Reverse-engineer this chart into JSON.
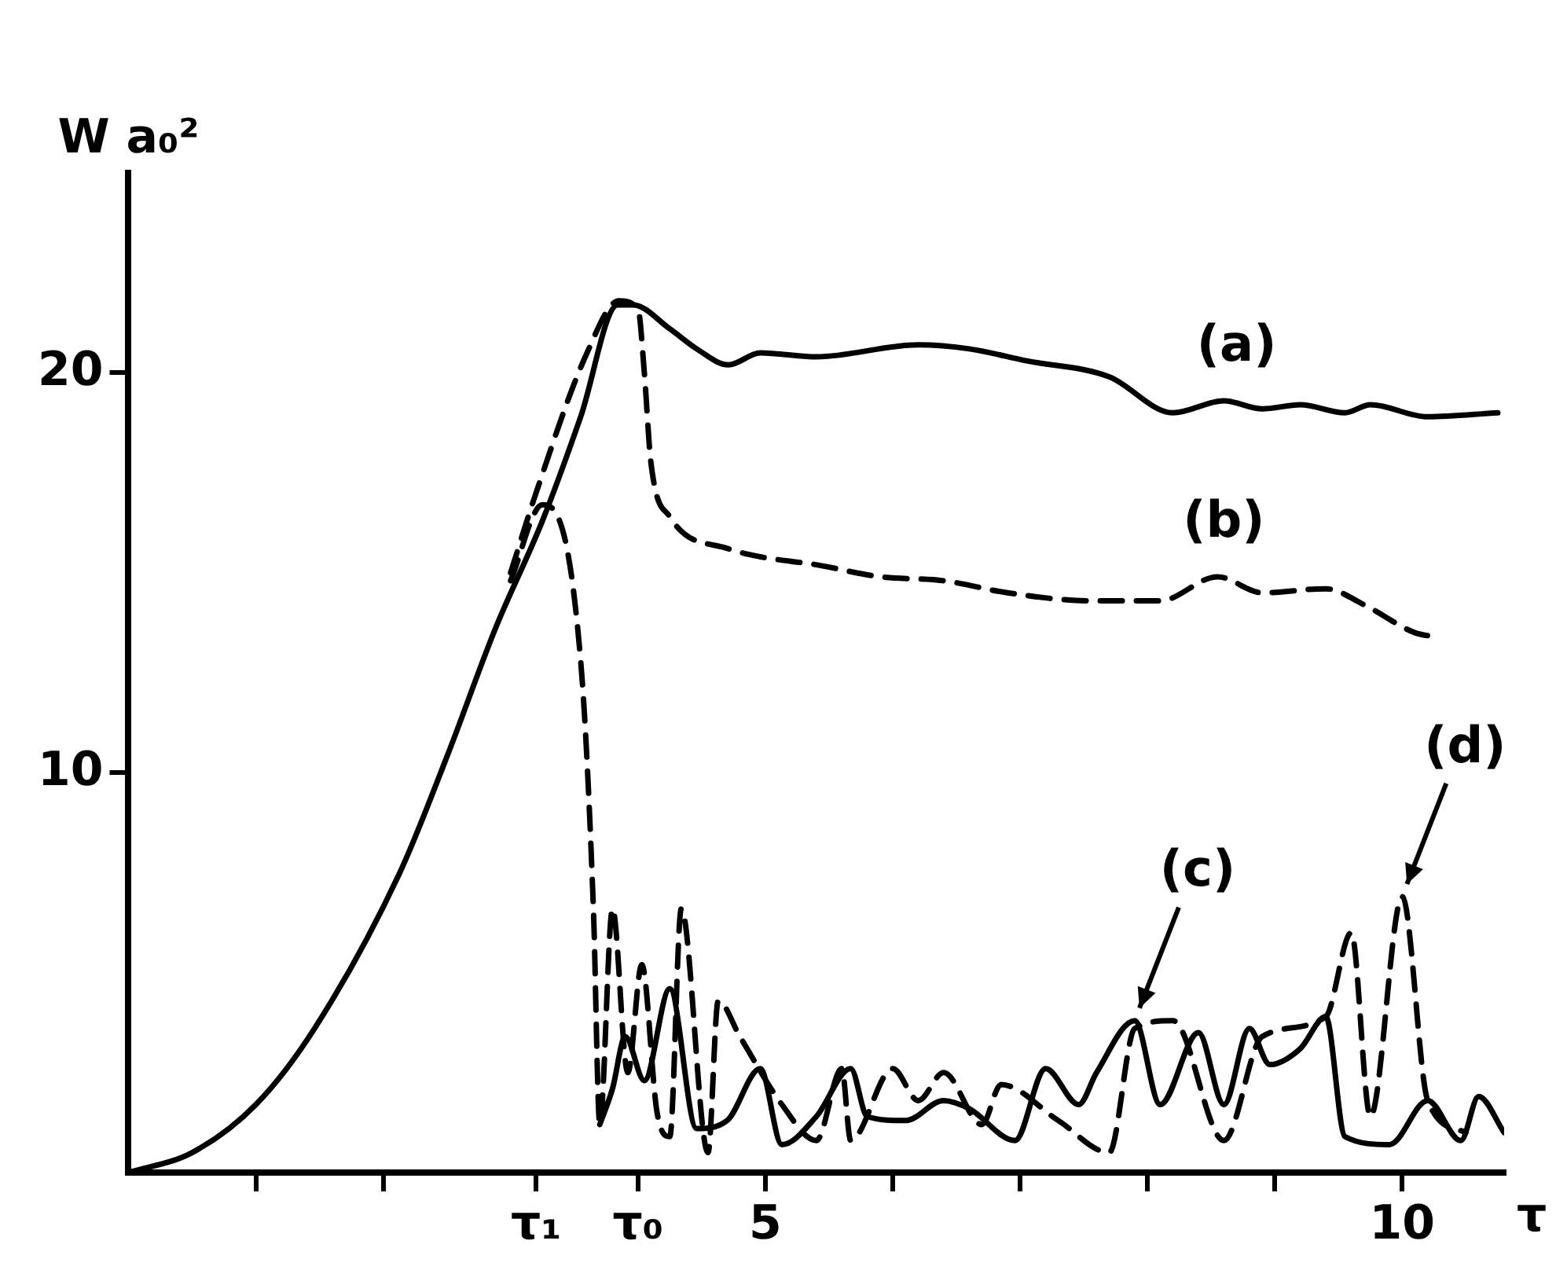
{
  "chart_data": {
    "type": "line",
    "xlabel": "τ",
    "ylabel": "W a₀²",
    "xlim": [
      0,
      10.8
    ],
    "ylim": [
      0,
      25
    ],
    "xticks": [
      {
        "value": 1,
        "label": null
      },
      {
        "value": 2,
        "label": null
      },
      {
        "value": 3.2,
        "label": "τ₁"
      },
      {
        "value": 4,
        "label": "τ₀"
      },
      5,
      {
        "value": 6,
        "label": null
      },
      {
        "value": 7,
        "label": null
      },
      {
        "value": 8,
        "label": null
      },
      {
        "value": 9,
        "label": null
      },
      10
    ],
    "yticks": [
      10,
      20
    ],
    "grid": false,
    "legend": false,
    "marker": "none",
    "series": [
      {
        "color": "#000000",
        "line_style": "solid",
        "x": [
          0,
          0.5,
          1.0,
          1.46,
          2.13,
          2.5,
          2.88,
          3.25,
          3.55,
          3.84,
          3.96,
          4.25,
          4.46,
          4.71,
          4.96,
          5.4,
          6.2,
          6.6,
          7.05,
          7.7,
          8.2,
          8.6,
          8.9,
          9.2,
          9.55,
          9.75,
          10.2,
          10.75
        ],
        "values": [
          0,
          0.5,
          1.7,
          3.6,
          7.5,
          10.4,
          13.6,
          16.3,
          18.9,
          21.7,
          21.7,
          21.1,
          20.6,
          20.2,
          20.5,
          20.4,
          20.7,
          20.6,
          20.3,
          19.9,
          19.0,
          19.3,
          19.1,
          19.2,
          19.0,
          19.2,
          18.9,
          19.0
        ]
      },
      {
        "color": "#000000",
        "line_style": "dashed",
        "x": [
          3.0,
          3.2,
          3.6,
          3.85,
          4.0,
          4.05,
          4.1,
          4.25,
          4.71,
          4.96,
          5.4,
          5.9,
          6.4,
          6.9,
          7.55,
          8.1,
          8.55,
          8.9,
          9.4,
          9.7,
          10.1,
          10.25
        ],
        "values": [
          15.0,
          17.0,
          20.5,
          21.8,
          21.6,
          20.0,
          17.8,
          16.4,
          15.6,
          15.4,
          15.2,
          14.9,
          14.8,
          14.5,
          14.3,
          14.3,
          14.9,
          14.5,
          14.6,
          14.2,
          13.5,
          13.4
        ]
      },
      {
        "color": "#000000",
        "line_style": "solid",
        "x": [
          3.7,
          3.8,
          3.9,
          4.05,
          4.25,
          4.46,
          4.7,
          4.96,
          5.13,
          5.4,
          5.67,
          5.8,
          6.1,
          6.4,
          6.6,
          6.96,
          7.2,
          7.46,
          7.6,
          7.9,
          8.1,
          8.4,
          8.6,
          8.8,
          8.96,
          9.2,
          9.4,
          9.55,
          9.9,
          10.2,
          10.46,
          10.6,
          10.8
        ],
        "values": [
          1.2,
          2.1,
          3.4,
          2.3,
          4.6,
          1.1,
          1.3,
          2.6,
          0.7,
          1.4,
          2.6,
          1.4,
          1.3,
          1.8,
          1.6,
          0.8,
          2.6,
          1.7,
          2.5,
          3.8,
          1.7,
          3.5,
          1.7,
          3.6,
          2.7,
          3.1,
          3.9,
          0.9,
          0.7,
          1.8,
          0.8,
          1.9,
          1.0
        ]
      },
      {
        "color": "#000000",
        "line_style": "dashed",
        "x": [
          3.0,
          3.25,
          3.55,
          3.65,
          3.7,
          3.8,
          3.92,
          4.03,
          4.15,
          4.25,
          4.34,
          4.55,
          4.63,
          4.8,
          5.13,
          5.4,
          5.6,
          5.67,
          6.0,
          6.2,
          6.4,
          6.7,
          6.85,
          7.3,
          7.7,
          7.9,
          8.2,
          8.6,
          8.9,
          9.4,
          9.6,
          9.75,
          10.0,
          10.2,
          10.5
        ],
        "values": [
          14.8,
          16.7,
          12.8,
          6.6,
          1.2,
          6.6,
          2.5,
          5.2,
          1.5,
          0.9,
          6.6,
          0.5,
          4.3,
          3.4,
          1.7,
          0.8,
          2.6,
          0.8,
          2.6,
          1.8,
          2.5,
          1.2,
          2.2,
          1.3,
          0.5,
          3.6,
          3.8,
          0.8,
          3.4,
          3.9,
          6.0,
          1.4,
          6.9,
          1.8,
          1.0
        ]
      }
    ],
    "annotations": [
      {
        "text": "(a)",
        "x": 8.7,
        "y": 19.3
      },
      {
        "text": "(b)",
        "x": 8.6,
        "y": 14.9
      },
      {
        "text": "(c)",
        "x": 7.9,
        "y": 3.8
      },
      {
        "text": "(d)",
        "x": 10.0,
        "y": 6.9
      }
    ]
  }
}
